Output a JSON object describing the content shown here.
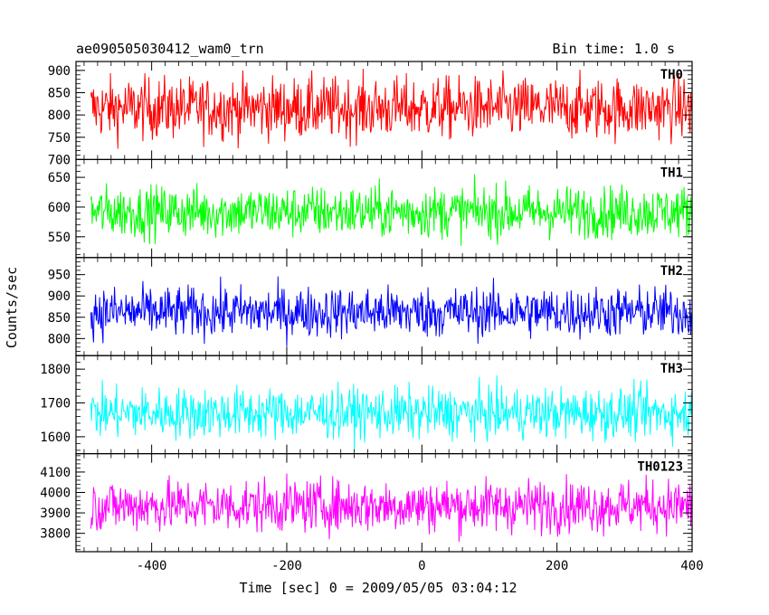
{
  "chart_data": {
    "type": "line",
    "title": "ae090505030412_wam0_trn",
    "subtitle": "Bin time: 1.0 s",
    "xlabel": "Time [sec] 0 = 2009/05/05 03:04:12",
    "ylabel": "Counts/sec",
    "xlim": [
      -512,
      400
    ],
    "x_ticks": [
      -400,
      -200,
      0,
      200,
      400
    ],
    "grid": false,
    "panels": [
      {
        "name": "TH0",
        "color": "#ff0000",
        "ylim": [
          700,
          920
        ],
        "y_ticks": [
          700,
          750,
          800,
          850,
          900
        ],
        "mean": 815,
        "spread": 35
      },
      {
        "name": "TH1",
        "color": "#00ff00",
        "ylim": [
          515,
          680
        ],
        "y_ticks": [
          550,
          600,
          650
        ],
        "mean": 592,
        "spread": 22
      },
      {
        "name": "TH2",
        "color": "#0000ff",
        "ylim": [
          760,
          990
        ],
        "y_ticks": [
          800,
          850,
          900,
          950
        ],
        "mean": 862,
        "spread": 30
      },
      {
        "name": "TH3",
        "color": "#00ffff",
        "ylim": [
          1550,
          1840
        ],
        "y_ticks": [
          1600,
          1700,
          1800
        ],
        "mean": 1670,
        "spread": 38
      },
      {
        "name": "TH0123",
        "color": "#ff00ff",
        "ylim": [
          3710,
          4190
        ],
        "y_ticks": [
          3800,
          3900,
          4000,
          4100
        ],
        "mean": 3935,
        "spread": 65
      }
    ]
  }
}
